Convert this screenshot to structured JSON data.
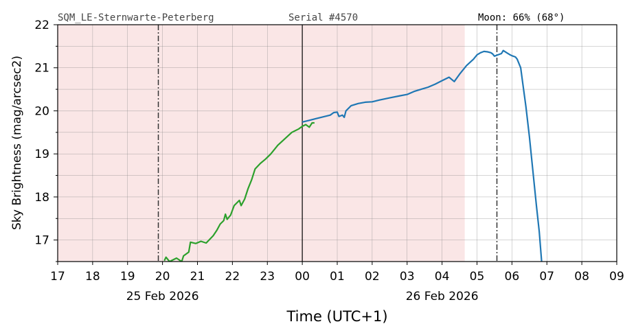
{
  "header": {
    "station": "SQM_LE-Sternwarte-Peterberg",
    "serial": "Serial #4570",
    "moon": "Moon: 66% (68°)"
  },
  "colors": {
    "evening_series": "#2ca02c",
    "morning_series": "#1f77b4",
    "night_shade": "#fae6e6",
    "grid": "#888888",
    "marker": "#333333"
  },
  "chart_data": {
    "type": "line",
    "xlabel": "Time (UTC+1)",
    "ylabel": "Sky Brightness (mag/arcsec2)",
    "xlim": [
      17,
      33
    ],
    "ylim": [
      16.5,
      22
    ],
    "x_ticks": [
      17,
      18,
      19,
      20,
      21,
      22,
      23,
      24,
      25,
      26,
      27,
      28,
      29,
      30,
      31,
      32,
      33
    ],
    "x_tick_labels": [
      "17",
      "18",
      "19",
      "20",
      "21",
      "22",
      "23",
      "00",
      "01",
      "02",
      "03",
      "04",
      "05",
      "06",
      "07",
      "08",
      "09"
    ],
    "y_ticks": [
      17,
      18,
      19,
      20,
      21,
      22
    ],
    "y_tick_labels": [
      "17",
      "18",
      "19",
      "20",
      "21",
      "22"
    ],
    "date_labels": [
      {
        "x": 20,
        "text": "25 Feb 2026"
      },
      {
        "x": 28,
        "text": "26 Feb 2026"
      }
    ],
    "grid": true,
    "night_shading_x": [
      17,
      28.65
    ],
    "vertical_lines": [
      {
        "x": 19.88,
        "style": "dashdot"
      },
      {
        "x": 24.0,
        "style": "solid"
      },
      {
        "x": 29.57,
        "style": "dashdot"
      }
    ],
    "series": [
      {
        "color": "#2ca02c",
        "points": [
          [
            20.05,
            16.52
          ],
          [
            20.1,
            16.6
          ],
          [
            20.2,
            16.5
          ],
          [
            20.4,
            16.58
          ],
          [
            20.55,
            16.5
          ],
          [
            20.6,
            16.63
          ],
          [
            20.75,
            16.72
          ],
          [
            20.8,
            16.95
          ],
          [
            20.95,
            16.92
          ],
          [
            21.1,
            16.97
          ],
          [
            21.25,
            16.93
          ],
          [
            21.45,
            17.1
          ],
          [
            21.55,
            17.22
          ],
          [
            21.65,
            17.37
          ],
          [
            21.75,
            17.45
          ],
          [
            21.8,
            17.6
          ],
          [
            21.85,
            17.48
          ],
          [
            21.95,
            17.58
          ],
          [
            22.05,
            17.8
          ],
          [
            22.2,
            17.92
          ],
          [
            22.25,
            17.8
          ],
          [
            22.35,
            17.95
          ],
          [
            22.45,
            18.2
          ],
          [
            22.55,
            18.4
          ],
          [
            22.65,
            18.65
          ],
          [
            22.8,
            18.78
          ],
          [
            22.95,
            18.88
          ],
          [
            23.1,
            19.0
          ],
          [
            23.3,
            19.2
          ],
          [
            23.5,
            19.35
          ],
          [
            23.7,
            19.5
          ],
          [
            23.9,
            19.58
          ],
          [
            24.0,
            19.64
          ],
          [
            24.1,
            19.68
          ],
          [
            24.2,
            19.62
          ],
          [
            24.28,
            19.72
          ],
          [
            24.35,
            19.72
          ]
        ]
      },
      {
        "color": "#1f77b4",
        "points": [
          [
            24.0,
            19.74
          ],
          [
            24.2,
            19.78
          ],
          [
            24.4,
            19.82
          ],
          [
            24.6,
            19.86
          ],
          [
            24.8,
            19.9
          ],
          [
            24.9,
            19.96
          ],
          [
            25.0,
            19.97
          ],
          [
            25.05,
            19.87
          ],
          [
            25.15,
            19.9
          ],
          [
            25.2,
            19.85
          ],
          [
            25.25,
            20.0
          ],
          [
            25.4,
            20.12
          ],
          [
            25.6,
            20.17
          ],
          [
            25.8,
            20.2
          ],
          [
            26.0,
            20.21
          ],
          [
            26.2,
            20.25
          ],
          [
            26.5,
            20.3
          ],
          [
            26.8,
            20.35
          ],
          [
            27.0,
            20.38
          ],
          [
            27.2,
            20.45
          ],
          [
            27.4,
            20.5
          ],
          [
            27.6,
            20.55
          ],
          [
            27.8,
            20.62
          ],
          [
            28.0,
            20.7
          ],
          [
            28.2,
            20.78
          ],
          [
            28.35,
            20.68
          ],
          [
            28.5,
            20.85
          ],
          [
            28.7,
            21.05
          ],
          [
            28.9,
            21.2
          ],
          [
            29.0,
            21.3
          ],
          [
            29.1,
            21.35
          ],
          [
            29.2,
            21.38
          ],
          [
            29.3,
            21.37
          ],
          [
            29.4,
            21.35
          ],
          [
            29.45,
            21.32
          ],
          [
            29.5,
            21.27
          ],
          [
            29.6,
            21.3
          ],
          [
            29.7,
            21.33
          ],
          [
            29.75,
            21.4
          ],
          [
            29.85,
            21.35
          ],
          [
            29.95,
            21.3
          ],
          [
            30.0,
            21.28
          ],
          [
            30.1,
            21.25
          ],
          [
            30.15,
            21.2
          ],
          [
            30.25,
            21.0
          ],
          [
            30.3,
            20.7
          ],
          [
            30.4,
            20.1
          ],
          [
            30.5,
            19.4
          ],
          [
            30.6,
            18.6
          ],
          [
            30.7,
            17.8
          ],
          [
            30.78,
            17.2
          ],
          [
            30.82,
            16.8
          ],
          [
            30.85,
            16.5
          ]
        ]
      }
    ]
  }
}
